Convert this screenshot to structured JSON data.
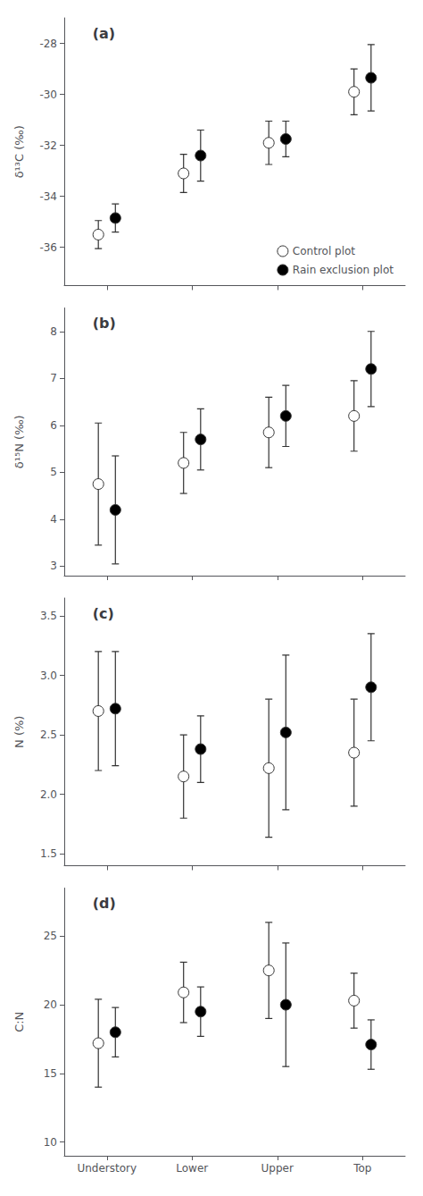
{
  "chart_data": [
    {
      "type": "scatter",
      "title": "(a)",
      "categories": [
        "Understory",
        "Lower",
        "Upper",
        "Top"
      ],
      "ylabel": "δ¹³C (‰)",
      "ylim": [
        -37.5,
        -27.0
      ],
      "yticks": [
        -36,
        -34,
        -32,
        -30,
        -28
      ],
      "series": [
        {
          "name": "Control plot",
          "color": "white",
          "values": [
            -35.5,
            -33.1,
            -31.9,
            -29.9
          ],
          "errors": [
            0.55,
            0.75,
            0.85,
            0.9
          ]
        },
        {
          "name": "Rain exclusion plot",
          "color": "black",
          "values": [
            -34.85,
            -32.4,
            -31.75,
            -29.35
          ],
          "errors": [
            0.55,
            1.0,
            0.7,
            1.3
          ]
        }
      ],
      "legend": "lower right",
      "grid": false,
      "tick_labels": "y"
    },
    {
      "type": "scatter",
      "title": "(b)",
      "categories": [
        "Understory",
        "Lower",
        "Upper",
        "Top"
      ],
      "ylabel": "δ¹⁵N (‰)",
      "ylim": [
        2.8,
        8.5
      ],
      "yticks": [
        3,
        4,
        5,
        6,
        7,
        8
      ],
      "series": [
        {
          "name": "Control plot",
          "color": "white",
          "values": [
            4.75,
            5.2,
            5.85,
            6.2
          ],
          "errors": [
            1.3,
            0.65,
            0.75,
            0.75
          ]
        },
        {
          "name": "Rain exclusion plot",
          "color": "black",
          "values": [
            4.2,
            5.7,
            6.2,
            7.2
          ],
          "errors": [
            1.15,
            0.65,
            0.65,
            0.8
          ]
        }
      ],
      "legend": false,
      "grid": false,
      "tick_labels": "y"
    },
    {
      "type": "scatter",
      "title": "(c)",
      "categories": [
        "Understory",
        "Lower",
        "Upper",
        "Top"
      ],
      "ylabel": "N (%)",
      "ylim": [
        1.4,
        3.65
      ],
      "yticks": [
        1.5,
        {
          "value": 2.0,
          "label": "2.0"
        },
        2.5,
        {
          "value": 3.0,
          "label": "3.0"
        },
        3.5
      ],
      "series": [
        {
          "name": "Control plot",
          "color": "white",
          "values": [
            2.7,
            2.15,
            2.22,
            2.35
          ],
          "errors": [
            0.5,
            0.35,
            0.58,
            0.45
          ]
        },
        {
          "name": "Rain exclusion plot",
          "color": "black",
          "values": [
            2.72,
            2.38,
            2.52,
            2.9
          ],
          "errors": [
            0.48,
            0.28,
            0.65,
            0.45
          ]
        }
      ],
      "legend": false,
      "grid": false,
      "tick_labels": "y"
    },
    {
      "type": "scatter",
      "title": "(d)",
      "categories": [
        "Understory",
        "Lower",
        "Upper",
        "Top"
      ],
      "ylabel": "C:N",
      "ylim": [
        9.0,
        28.5
      ],
      "yticks": [
        10,
        15,
        20,
        25
      ],
      "series": [
        {
          "name": "Control plot",
          "color": "white",
          "values": [
            17.2,
            20.9,
            22.5,
            20.3
          ],
          "errors": [
            3.2,
            2.2,
            3.5,
            2.0
          ]
        },
        {
          "name": "Rain exclusion plot",
          "color": "black",
          "values": [
            18.0,
            19.5,
            20.0,
            17.1
          ],
          "errors": [
            1.8,
            1.8,
            4.5,
            1.8
          ]
        }
      ],
      "legend": false,
      "grid": false,
      "tick_labels": true
    }
  ]
}
